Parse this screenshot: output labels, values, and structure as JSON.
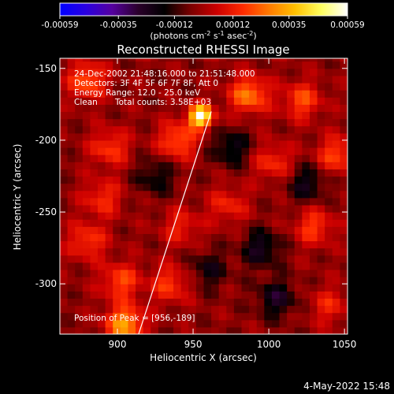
{
  "colorbar": {
    "ticks": [
      "-0.00059",
      "-0.00035",
      "-0.00012",
      "0.00012",
      "0.00035",
      "0.00059"
    ],
    "tick_values": [
      -0.00059,
      -0.00035,
      -0.00012,
      0.00012,
      0.00035,
      0.00059
    ],
    "range": [
      -0.00059,
      0.00059
    ],
    "units_prefix": "(photons cm",
    "units_sup1": "-2",
    "units_mid": " s",
    "units_sup2": "-1",
    "units_mid2": " asec",
    "units_sup3": "-2",
    "units_suffix": ")",
    "colors": [
      "#0000ff",
      "#2a00e0",
      "#55009e",
      "#2a002a",
      "#000000",
      "#7a0000",
      "#cc0000",
      "#ff2a00",
      "#ff7a00",
      "#ffc000",
      "#ffff60",
      "#ffffff"
    ]
  },
  "chart_data": {
    "type": "heatmap",
    "title": "Reconstructed RHESSI Image",
    "xlabel": "Heliocentric X (arcsec)",
    "ylabel": "Heliocentric Y (arcsec)",
    "xlim": [
      862,
      1052
    ],
    "ylim": [
      -335,
      -143
    ],
    "xticks": [
      900,
      950,
      1000,
      1050
    ],
    "yticks": [
      -150,
      -200,
      -250,
      -300
    ],
    "annotations": {
      "time": "24-Dec-2002 21:48:16.000 to 21:51:48.000",
      "detectors": "Detectors: 3F 4F 5F 6F 7F 8F, Att 0",
      "energy": "Energy Range: 12.0 - 25.0 keV",
      "method": "Clean",
      "counts": "Total counts: 3.58E+03",
      "peak": "Position of Peak = [956,-189]"
    },
    "peak": {
      "x": 956,
      "y": -189
    },
    "limb_line": [
      [
        914,
        -335
      ],
      [
        962,
        -180
      ]
    ],
    "sources": [
      {
        "x": 955,
        "y": -183,
        "value": 0.00059
      },
      {
        "x": 940,
        "y": -200,
        "value": 0.00025
      },
      {
        "x": 987,
        "y": -168,
        "value": 0.0003
      },
      {
        "x": 1022,
        "y": -172,
        "value": 0.00022
      },
      {
        "x": 880,
        "y": -158,
        "value": 0.00025
      },
      {
        "x": 895,
        "y": -205,
        "value": 0.0002
      },
      {
        "x": 890,
        "y": -240,
        "value": 0.00018
      },
      {
        "x": 880,
        "y": -270,
        "value": 0.0002
      },
      {
        "x": 902,
        "y": -298,
        "value": 0.00022
      },
      {
        "x": 905,
        "y": -328,
        "value": 0.00035
      },
      {
        "x": 935,
        "y": -300,
        "value": 0.0002
      },
      {
        "x": 942,
        "y": -260,
        "value": 0.00015
      },
      {
        "x": 973,
        "y": -245,
        "value": 0.00016
      },
      {
        "x": 1003,
        "y": -215,
        "value": 0.00018
      },
      {
        "x": 1030,
        "y": -260,
        "value": 0.0002
      },
      {
        "x": 1045,
        "y": -210,
        "value": 0.00022
      },
      {
        "x": 1040,
        "y": -315,
        "value": 0.00015
      },
      {
        "x": 1005,
        "y": -310,
        "value": -0.0002
      },
      {
        "x": 975,
        "y": -205,
        "value": -0.00018
      },
      {
        "x": 925,
        "y": -225,
        "value": -0.00015
      },
      {
        "x": 1025,
        "y": -230,
        "value": -0.00018
      },
      {
        "x": 995,
        "y": -275,
        "value": -0.0002
      },
      {
        "x": 960,
        "y": -290,
        "value": -0.00015
      }
    ],
    "date_stamp": "4-May-2022 15:48"
  }
}
